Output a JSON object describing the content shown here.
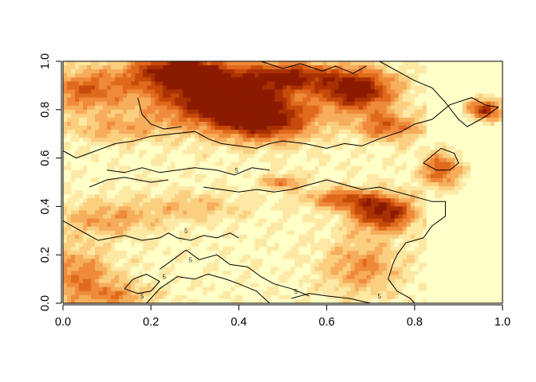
{
  "chart_data": {
    "type": "heatmap",
    "title": "",
    "xlabel": "",
    "ylabel": "",
    "xlim": [
      0.0,
      1.0
    ],
    "ylim": [
      0.0,
      1.0
    ],
    "x_ticks": [
      "0.0",
      "0.2",
      "0.4",
      "0.6",
      "0.8",
      "1.0"
    ],
    "y_ticks": [
      "0.0",
      "0.2",
      "0.4",
      "0.6",
      "0.8",
      "1.0"
    ],
    "x_tick_values": [
      0.0,
      0.2,
      0.4,
      0.6,
      0.8,
      1.0
    ],
    "y_tick_values": [
      0.0,
      0.2,
      0.4,
      0.6,
      0.8,
      1.0
    ],
    "grid": false,
    "legend": "none",
    "color_scale": [
      "#ffffc8",
      "#fde8a4",
      "#fbcf80",
      "#f6ad5c",
      "#ee8a3a",
      "#e06a1c",
      "#c84a0a",
      "#a83002",
      "#8a1a00"
    ],
    "hotspots": [
      {
        "x": 0.36,
        "y": 0.85,
        "sx": 0.11,
        "sy": 0.08,
        "w": 1.0
      },
      {
        "x": 0.26,
        "y": 0.96,
        "sx": 0.08,
        "sy": 0.05,
        "w": 0.85
      },
      {
        "x": 0.46,
        "y": 0.75,
        "sx": 0.08,
        "sy": 0.06,
        "w": 0.75
      },
      {
        "x": 0.67,
        "y": 0.88,
        "sx": 0.06,
        "sy": 0.06,
        "w": 0.95
      },
      {
        "x": 0.52,
        "y": 0.94,
        "sx": 0.07,
        "sy": 0.04,
        "w": 0.7
      },
      {
        "x": 0.74,
        "y": 0.73,
        "sx": 0.05,
        "sy": 0.04,
        "w": 0.55
      },
      {
        "x": 0.96,
        "y": 0.8,
        "sx": 0.025,
        "sy": 0.03,
        "w": 0.8
      },
      {
        "x": 0.86,
        "y": 0.55,
        "sx": 0.03,
        "sy": 0.05,
        "w": 0.6
      },
      {
        "x": 0.73,
        "y": 0.37,
        "sx": 0.05,
        "sy": 0.05,
        "w": 0.85
      },
      {
        "x": 0.64,
        "y": 0.43,
        "sx": 0.06,
        "sy": 0.03,
        "w": 0.55
      },
      {
        "x": 0.5,
        "y": 0.5,
        "sx": 0.03,
        "sy": 0.02,
        "w": 0.5
      },
      {
        "x": 0.05,
        "y": 0.88,
        "sx": 0.07,
        "sy": 0.06,
        "w": 0.55
      },
      {
        "x": 0.12,
        "y": 0.72,
        "sx": 0.08,
        "sy": 0.04,
        "w": 0.3
      },
      {
        "x": 0.1,
        "y": 0.35,
        "sx": 0.08,
        "sy": 0.05,
        "w": 0.35
      },
      {
        "x": 0.3,
        "y": 0.4,
        "sx": 0.08,
        "sy": 0.04,
        "w": 0.25
      },
      {
        "x": 0.03,
        "y": 0.12,
        "sx": 0.06,
        "sy": 0.08,
        "w": 0.45
      },
      {
        "x": 0.12,
        "y": 0.03,
        "sx": 0.06,
        "sy": 0.04,
        "w": 0.35
      },
      {
        "x": 0.68,
        "y": 0.15,
        "sx": 0.06,
        "sy": 0.08,
        "w": 0.4
      }
    ],
    "flat_region": {
      "x_start": 0.83,
      "x_end": 1.0
    },
    "contours": [
      {
        "points": [
          [
            0.0,
            0.34
          ],
          [
            0.03,
            0.31
          ],
          [
            0.06,
            0.28
          ],
          [
            0.08,
            0.26
          ],
          [
            0.11,
            0.27
          ],
          [
            0.14,
            0.28
          ],
          [
            0.18,
            0.26
          ],
          [
            0.22,
            0.27
          ],
          [
            0.24,
            0.29
          ],
          [
            0.26,
            0.27
          ],
          [
            0.29,
            0.26
          ],
          [
            0.32,
            0.28
          ],
          [
            0.35,
            0.27
          ],
          [
            0.38,
            0.29
          ],
          [
            0.4,
            0.27
          ]
        ]
      },
      {
        "points": [
          [
            0.19,
            0.0
          ],
          [
            0.22,
            0.06
          ],
          [
            0.26,
            0.11
          ],
          [
            0.3,
            0.1
          ],
          [
            0.33,
            0.12
          ],
          [
            0.37,
            0.1
          ],
          [
            0.4,
            0.08
          ],
          [
            0.44,
            0.05
          ],
          [
            0.47,
            0.0
          ]
        ]
      },
      {
        "points": [
          [
            0.22,
            0.14
          ],
          [
            0.25,
            0.18
          ],
          [
            0.28,
            0.22
          ],
          [
            0.31,
            0.18
          ],
          [
            0.35,
            0.2
          ],
          [
            0.38,
            0.16
          ],
          [
            0.42,
            0.15
          ],
          [
            0.45,
            0.11
          ],
          [
            0.48,
            0.08
          ],
          [
            0.52,
            0.06
          ],
          [
            0.56,
            0.03
          ]
        ]
      },
      {
        "points": [
          [
            0.0,
            0.63
          ],
          [
            0.03,
            0.6
          ],
          [
            0.06,
            0.62
          ],
          [
            0.09,
            0.64
          ],
          [
            0.12,
            0.66
          ],
          [
            0.16,
            0.67
          ],
          [
            0.2,
            0.69
          ],
          [
            0.25,
            0.7
          ],
          [
            0.3,
            0.71
          ],
          [
            0.33,
            0.68
          ],
          [
            0.36,
            0.66
          ],
          [
            0.4,
            0.65
          ],
          [
            0.44,
            0.64
          ],
          [
            0.47,
            0.66
          ],
          [
            0.5,
            0.67
          ],
          [
            0.55,
            0.66
          ],
          [
            0.6,
            0.64
          ],
          [
            0.64,
            0.66
          ],
          [
            0.68,
            0.65
          ],
          [
            0.72,
            0.68
          ],
          [
            0.77,
            0.71
          ],
          [
            0.8,
            0.74
          ],
          [
            0.84,
            0.76
          ],
          [
            0.88,
            0.82
          ],
          [
            0.93,
            0.85
          ],
          [
            0.96,
            0.82
          ],
          [
            0.99,
            0.81
          ],
          [
            0.96,
            0.77
          ],
          [
            0.92,
            0.73
          ],
          [
            0.9,
            0.76
          ],
          [
            0.87,
            0.83
          ],
          [
            0.84,
            0.89
          ],
          [
            0.8,
            0.92
          ],
          [
            0.76,
            0.96
          ],
          [
            0.72,
            1.0
          ]
        ]
      },
      {
        "points": [
          [
            0.45,
            1.0
          ],
          [
            0.5,
            0.97
          ],
          [
            0.54,
            0.99
          ],
          [
            0.59,
            0.96
          ],
          [
            0.62,
            0.98
          ],
          [
            0.66,
            0.95
          ],
          [
            0.69,
            0.98
          ]
        ]
      },
      {
        "points": [
          [
            0.17,
            0.85
          ],
          [
            0.18,
            0.78
          ],
          [
            0.2,
            0.74
          ],
          [
            0.23,
            0.72
          ],
          [
            0.27,
            0.73
          ]
        ]
      },
      {
        "points": [
          [
            0.1,
            0.55
          ],
          [
            0.14,
            0.54
          ],
          [
            0.18,
            0.56
          ],
          [
            0.22,
            0.54
          ],
          [
            0.26,
            0.55
          ],
          [
            0.3,
            0.56
          ],
          [
            0.35,
            0.55
          ],
          [
            0.39,
            0.53
          ],
          [
            0.43,
            0.56
          ],
          [
            0.47,
            0.55
          ]
        ]
      },
      {
        "points": [
          [
            0.32,
            0.48
          ],
          [
            0.36,
            0.47
          ],
          [
            0.4,
            0.46
          ],
          [
            0.44,
            0.47
          ],
          [
            0.48,
            0.46
          ],
          [
            0.52,
            0.47
          ],
          [
            0.56,
            0.49
          ],
          [
            0.6,
            0.51
          ],
          [
            0.64,
            0.49
          ],
          [
            0.68,
            0.47
          ],
          [
            0.72,
            0.48
          ],
          [
            0.76,
            0.46
          ],
          [
            0.8,
            0.44
          ],
          [
            0.84,
            0.42
          ],
          [
            0.87,
            0.42
          ],
          [
            0.87,
            0.36
          ],
          [
            0.84,
            0.32
          ],
          [
            0.82,
            0.27
          ],
          [
            0.78,
            0.25
          ],
          [
            0.76,
            0.2
          ],
          [
            0.75,
            0.16
          ],
          [
            0.74,
            0.1
          ],
          [
            0.76,
            0.05
          ],
          [
            0.79,
            0.02
          ],
          [
            0.8,
            0.0
          ]
        ]
      },
      {
        "points": [
          [
            0.82,
            0.58
          ],
          [
            0.84,
            0.61
          ],
          [
            0.86,
            0.64
          ],
          [
            0.89,
            0.62
          ],
          [
            0.9,
            0.58
          ],
          [
            0.88,
            0.55
          ],
          [
            0.85,
            0.55
          ],
          [
            0.82,
            0.58
          ]
        ]
      },
      {
        "points": [
          [
            0.06,
            0.48
          ],
          [
            0.1,
            0.51
          ],
          [
            0.14,
            0.52
          ],
          [
            0.2,
            0.5
          ],
          [
            0.24,
            0.51
          ]
        ]
      },
      {
        "points": [
          [
            0.14,
            0.06
          ],
          [
            0.16,
            0.1
          ],
          [
            0.19,
            0.12
          ],
          [
            0.22,
            0.09
          ],
          [
            0.2,
            0.05
          ],
          [
            0.17,
            0.04
          ],
          [
            0.14,
            0.06
          ]
        ]
      },
      {
        "points": [
          [
            0.52,
            0.02
          ],
          [
            0.56,
            0.04
          ],
          [
            0.6,
            0.03
          ],
          [
            0.65,
            0.02
          ],
          [
            0.7,
            0.0
          ]
        ]
      }
    ],
    "contour_labels": [
      {
        "text": "5",
        "x": 0.395,
        "y": 0.54
      },
      {
        "text": "5",
        "x": 0.28,
        "y": 0.29
      },
      {
        "text": "5",
        "x": 0.29,
        "y": 0.17
      },
      {
        "text": "5",
        "x": 0.53,
        "y": 0.04
      },
      {
        "text": "5",
        "x": 0.72,
        "y": 0.02
      },
      {
        "text": "5",
        "x": 0.18,
        "y": 0.02
      },
      {
        "text": "5",
        "x": 0.23,
        "y": 0.1
      }
    ]
  }
}
